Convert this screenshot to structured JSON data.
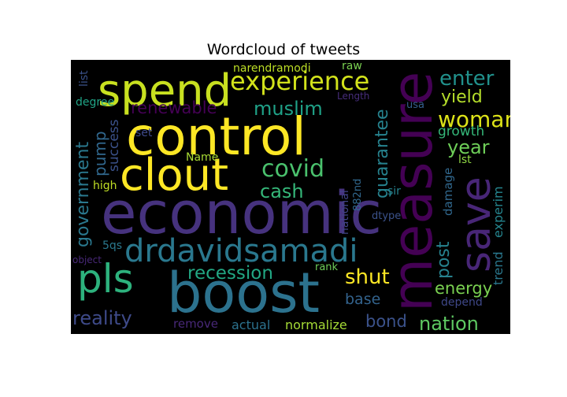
{
  "chart_data": {
    "type": "wordcloud",
    "title": "Wordcloud of tweets",
    "background": "#000000",
    "colormap": "viridis",
    "words": [
      {
        "text": "control",
        "color": "#fde725"
      },
      {
        "text": "economic",
        "color": "#46327e"
      },
      {
        "text": "boost",
        "color": "#2c728e"
      },
      {
        "text": "measure",
        "color": "#440154"
      },
      {
        "text": "spend",
        "color": "#c8e020"
      },
      {
        "text": "clout",
        "color": "#fde725"
      },
      {
        "text": "save",
        "color": "#482677"
      },
      {
        "text": "drdavidsamadi",
        "color": "#2a788e"
      },
      {
        "text": "pls",
        "color": "#2db27d"
      },
      {
        "text": "experience",
        "color": "#d2e21b"
      },
      {
        "text": "covid",
        "color": "#4ac16d"
      },
      {
        "text": "cash",
        "color": "#35b779"
      },
      {
        "text": "muslim",
        "color": "#1fa187"
      },
      {
        "text": "woman",
        "color": "#dde318"
      },
      {
        "text": "renewable",
        "color": "#440154"
      },
      {
        "text": "enter",
        "color": "#21918c"
      },
      {
        "text": "yield",
        "color": "#b5de2b"
      },
      {
        "text": "year",
        "color": "#6ece58"
      },
      {
        "text": "growth",
        "color": "#35b779"
      },
      {
        "text": "government",
        "color": "#2a788e"
      },
      {
        "text": "pump",
        "color": "#31688e"
      },
      {
        "text": "success",
        "color": "#3b528b"
      },
      {
        "text": "guarantee",
        "color": "#26828e"
      },
      {
        "text": "recession",
        "color": "#22a884"
      },
      {
        "text": "shut",
        "color": "#fde725"
      },
      {
        "text": "reality",
        "color": "#3e4a89"
      },
      {
        "text": "nation",
        "color": "#5ec962"
      },
      {
        "text": "energy",
        "color": "#7ad151"
      },
      {
        "text": "post",
        "color": "#26828e"
      },
      {
        "text": "base",
        "color": "#33638d"
      },
      {
        "text": "bond",
        "color": "#3b528b"
      },
      {
        "text": "actual",
        "color": "#2c728e"
      },
      {
        "text": "normalize",
        "color": "#a5db36"
      },
      {
        "text": "remove",
        "color": "#482878"
      },
      {
        "text": "trend",
        "color": "#2a788e"
      },
      {
        "text": "experim",
        "color": "#25858e"
      },
      {
        "text": "damage",
        "color": "#31688e"
      },
      {
        "text": "depend",
        "color": "#3f4889"
      },
      {
        "text": "lst",
        "color": "#8fd744"
      },
      {
        "text": "narendramodi",
        "color": "#bddf26"
      },
      {
        "text": "raw",
        "color": "#7ad151"
      },
      {
        "text": "list",
        "color": "#3b528b"
      },
      {
        "text": "degree",
        "color": "#20a486"
      },
      {
        "text": "Length",
        "color": "#472d7b"
      },
      {
        "text": "usa",
        "color": "#355f8d"
      },
      {
        "text": "set",
        "color": "#3e4989"
      },
      {
        "text": "Name",
        "color": "#a8db34"
      },
      {
        "text": "high",
        "color": "#c0df25"
      },
      {
        "text": "national",
        "color": "#414487"
      },
      {
        "text": "882nd",
        "color": "#31688e"
      },
      {
        "text": "dtype",
        "color": "#3b528b"
      },
      {
        "text": "sir",
        "color": "#26828e"
      },
      {
        "text": "5qs",
        "color": "#2a788e"
      },
      {
        "text": "rank",
        "color": "#6ece58"
      },
      {
        "text": "object",
        "color": "#482878"
      }
    ]
  }
}
